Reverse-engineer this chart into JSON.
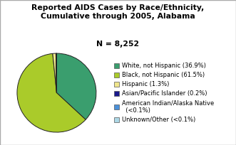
{
  "title_line1": "Reported AIDS Cases by Race/Ethnicity,",
  "title_line2": "Cumulative through 2005, Alabama",
  "title_line3": "N = 8,252",
  "slices": [
    36.9,
    61.5,
    1.3,
    0.2,
    0.05,
    0.05
  ],
  "colors": [
    "#3a9e6e",
    "#aacb2a",
    "#f0e68c",
    "#1a1a8c",
    "#4a90d9",
    "#add8e6"
  ],
  "labels": [
    "White, not Hispanic (36.9%)",
    "Black, not Hispanic (61.5%)",
    "Hispanic (1.3%)",
    "Asian/Pacific Islander (0.2%)",
    "American Indian/Alaska Native\n  (<0.1%)",
    "Unknown/Other (<0.1%)"
  ],
  "legend_fontsize": 6.0,
  "title_fontsize": 7.8,
  "edge_color": "#222222",
  "background_color": "#ffffff",
  "border_color": "#aaaaaa"
}
